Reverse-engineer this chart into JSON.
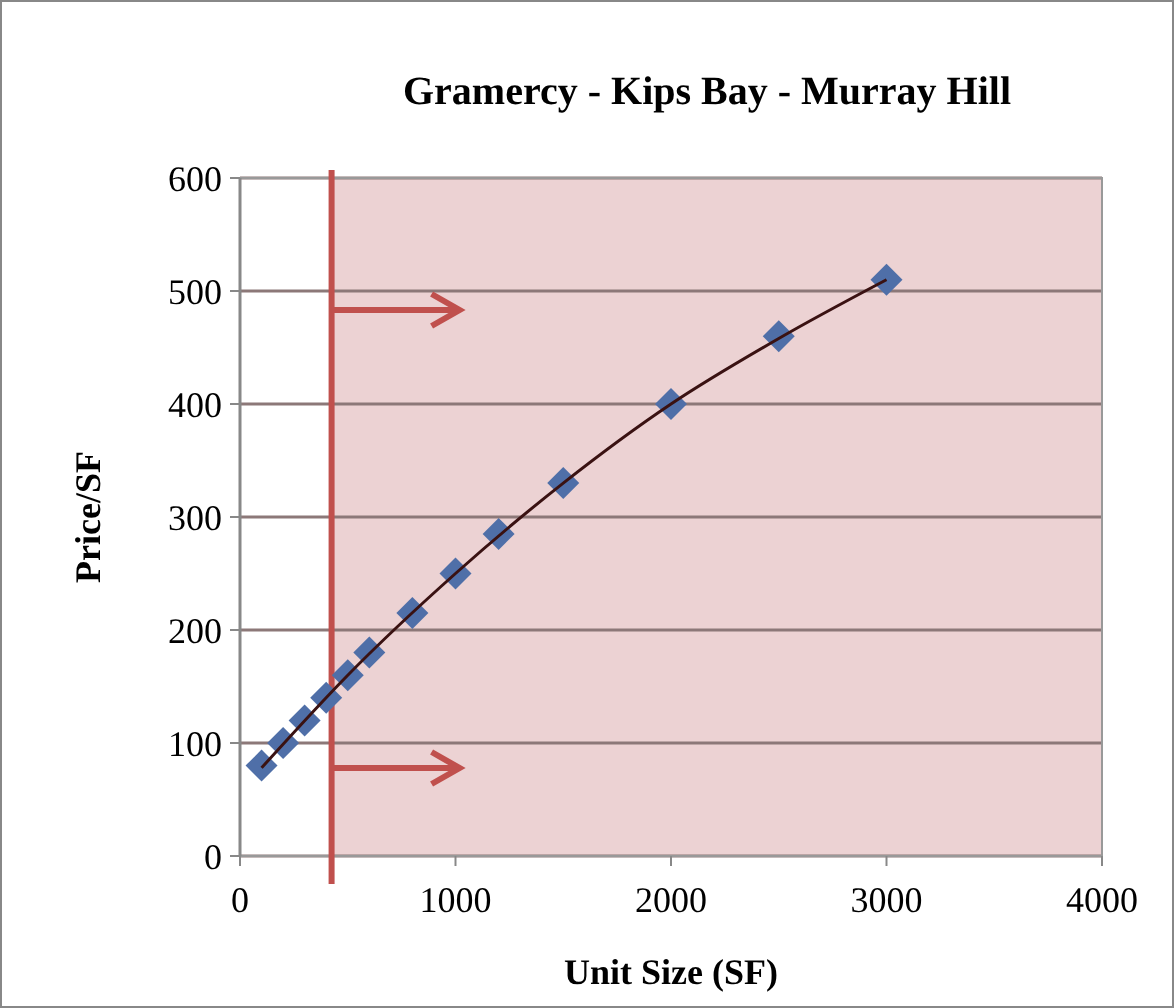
{
  "chart_data": {
    "type": "scatter",
    "title": "Gramercy - Kips Bay - Murray Hill",
    "xlabel": "Unit Size (SF)",
    "ylabel": "Price/SF",
    "xlim": [
      0,
      4000
    ],
    "xticks": [
      0,
      1000,
      2000,
      3000,
      4000
    ],
    "ylim": [
      0,
      600
    ],
    "yticks": [
      0,
      100,
      200,
      300,
      400,
      500,
      600
    ],
    "grid": "y",
    "marker": "diamond",
    "series": [
      {
        "color": "#4f6fa8",
        "x": [
          100,
          200,
          300,
          400,
          500,
          600,
          800,
          1000,
          1200,
          1500,
          2000,
          2500,
          3000
        ],
        "values": [
          80,
          100,
          120,
          140,
          160,
          180,
          215,
          250,
          285,
          330,
          400,
          460,
          510
        ]
      },
      {
        "type": "line",
        "color": "#3a1212",
        "marker": "none",
        "x": [
          100,
          500,
          1000,
          1500,
          2000,
          2500,
          3000
        ],
        "values": [
          78,
          160,
          250,
          330,
          400,
          458,
          510
        ]
      }
    ],
    "bands": [
      {
        "axis": "x",
        "from": 425,
        "to": 4000,
        "color": "#ecd2d3"
      }
    ],
    "ref_lines": [
      {
        "axis": "x",
        "value": 425,
        "color": "#c0504d"
      }
    ]
  }
}
